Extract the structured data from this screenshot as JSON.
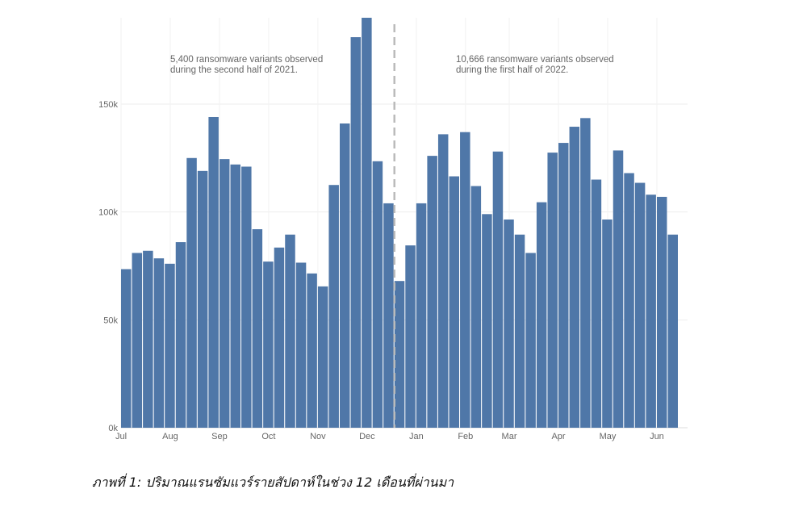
{
  "chart_data": {
    "type": "bar",
    "title": "",
    "xlabel": "",
    "ylabel": "",
    "ylim": [
      0,
      190000
    ],
    "yticks": [
      {
        "value": 0,
        "label": "0k"
      },
      {
        "value": 50000,
        "label": "50k"
      },
      {
        "value": 100000,
        "label": "100k"
      },
      {
        "value": 150000,
        "label": "150k"
      }
    ],
    "xticks": [
      {
        "index": 0,
        "label": "Jul"
      },
      {
        "index": 4.5,
        "label": "Aug"
      },
      {
        "index": 9,
        "label": "Sep"
      },
      {
        "index": 13.5,
        "label": "Oct"
      },
      {
        "index": 18,
        "label": "Nov"
      },
      {
        "index": 22.5,
        "label": "Dec"
      },
      {
        "index": 27,
        "label": "Jan"
      },
      {
        "index": 31.5,
        "label": "Feb"
      },
      {
        "index": 35.5,
        "label": "Mar"
      },
      {
        "index": 40,
        "label": "Apr"
      },
      {
        "index": 44.5,
        "label": "May"
      },
      {
        "index": 49,
        "label": "Jun"
      }
    ],
    "grid": true,
    "color": "#4f77a8",
    "values": [
      73500,
      81000,
      82000,
      78500,
      76000,
      86000,
      125000,
      119000,
      144000,
      124500,
      122000,
      121000,
      92000,
      77000,
      83500,
      89500,
      76500,
      71500,
      65500,
      112500,
      141000,
      181000,
      190000,
      123500,
      104000,
      68000,
      84500,
      104000,
      126000,
      136000,
      116500,
      137000,
      112000,
      99000,
      128000,
      96500,
      89500,
      81000,
      104500,
      127500,
      132000,
      139500,
      143500,
      115000,
      96500,
      128500,
      118000,
      113500,
      108000,
      107000,
      89500
    ],
    "divider_after_index": 24,
    "annotations": [
      {
        "lines": [
          "5,400 ransomware variants observed",
          "during the second half of 2021."
        ]
      },
      {
        "lines": [
          "10,666 ransomware variants observed",
          "during the first half of 2022."
        ]
      }
    ]
  },
  "caption": "ภาพที่ 1: ปริมาณแรนซัมแวร์รายสัปดาห์ในช่วง 12 เดือนที่ผ่านมา"
}
